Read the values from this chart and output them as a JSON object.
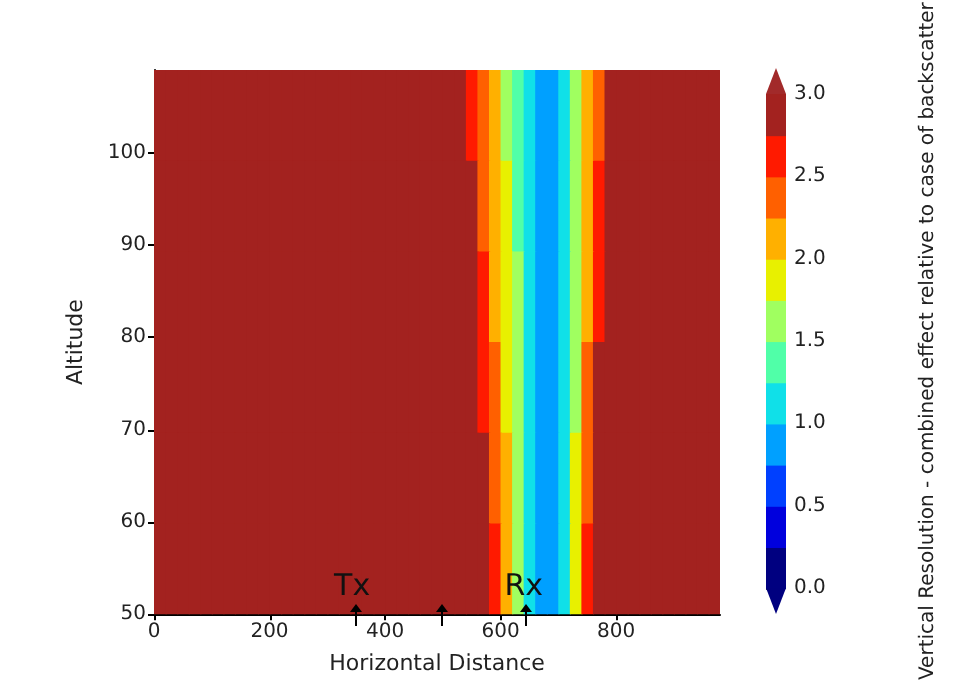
{
  "chart_data": {
    "type": "heatmap",
    "xlabel": "Horizontal Distance",
    "ylabel": "Altitude",
    "clabel": "Vertical Resolution - combined effect relative to case of backscatter",
    "xlim": [
      0,
      980
    ],
    "ylim": [
      50,
      109
    ],
    "xticks": [
      0,
      200,
      400,
      600,
      800
    ],
    "yticks": [
      50,
      60,
      70,
      80,
      90,
      100
    ],
    "clim": [
      0,
      3
    ],
    "cticks": [
      {
        "value": 0,
        "label": "0.0"
      },
      {
        "value": 0.5,
        "label": "0.5"
      },
      {
        "value": 1,
        "label": "1.0"
      },
      {
        "value": 1.5,
        "label": "1.5"
      },
      {
        "value": 2,
        "label": "2.0"
      },
      {
        "value": 2.5,
        "label": "2.5"
      },
      {
        "value": 3,
        "label": "3.0"
      }
    ],
    "annotations": [
      "Tx",
      "Rx"
    ],
    "cells": [
      [
        3,
        3,
        3,
        3,
        3,
        3,
        3,
        3,
        3,
        3,
        3,
        3,
        3,
        3,
        3,
        3,
        3,
        3,
        3,
        3,
        3,
        3,
        3,
        3,
        3,
        3,
        2.9,
        2.6,
        2.3,
        2.0,
        1.7,
        1.4,
        1.1,
        0.9,
        0.9,
        1.1,
        1.5,
        2.0,
        2.4,
        2.8,
        3,
        3,
        3,
        3,
        3,
        3,
        3,
        3,
        3
      ],
      [
        3,
        3,
        3,
        3,
        3,
        3,
        3,
        3,
        3,
        3,
        3,
        3,
        3,
        3,
        3,
        3,
        3,
        3,
        3,
        3,
        3,
        3,
        3,
        3,
        3,
        3,
        3,
        2.8,
        2.4,
        2.1,
        1.8,
        1.4,
        1.1,
        0.9,
        0.9,
        1.1,
        1.6,
        2.0,
        2.5,
        3,
        3,
        3,
        3,
        3,
        3,
        3,
        3,
        3,
        3
      ],
      [
        3,
        3,
        3,
        3,
        3,
        3,
        3,
        3,
        3,
        3,
        3,
        3,
        3,
        3,
        3,
        3,
        3,
        3,
        3,
        3,
        3,
        3,
        3,
        3,
        3,
        3,
        3,
        2.9,
        2.5,
        2.2,
        1.8,
        1.5,
        1.1,
        0.9,
        0.9,
        1.1,
        1.6,
        2.1,
        2.6,
        3,
        3,
        3,
        3,
        3,
        3,
        3,
        3,
        3,
        3
      ],
      [
        3,
        3,
        3,
        3,
        3,
        3,
        3,
        3,
        3,
        3,
        3,
        3,
        3,
        3,
        3,
        3,
        3,
        3,
        3,
        3,
        3,
        3,
        3,
        3,
        3,
        3,
        3,
        3,
        2.7,
        2.3,
        1.9,
        1.5,
        1.1,
        0.9,
        0.9,
        1.1,
        1.7,
        2.3,
        2.8,
        3,
        3,
        3,
        3,
        3,
        3,
        3,
        3,
        3,
        3
      ],
      [
        3,
        3,
        3,
        3,
        3,
        3,
        3,
        3,
        3,
        3,
        3,
        3,
        3,
        3,
        3,
        3,
        3,
        3,
        3,
        3,
        3,
        3,
        3,
        3,
        3,
        3,
        3,
        3,
        2.9,
        2.4,
        2.0,
        1.5,
        1.1,
        0.9,
        0.9,
        1.2,
        1.8,
        2.4,
        3,
        3,
        3,
        3,
        3,
        3,
        3,
        3,
        3,
        3,
        3
      ],
      [
        3,
        3,
        3,
        3,
        3,
        3,
        3,
        3,
        3,
        3,
        3,
        3,
        3,
        3,
        3,
        3,
        3,
        3,
        3,
        3,
        3,
        3,
        3,
        3,
        3,
        3,
        3,
        3,
        3,
        2.6,
        2.1,
        1.6,
        1.1,
        0.9,
        0.9,
        1.2,
        1.9,
        2.6,
        3,
        3,
        3,
        3,
        3,
        3,
        3,
        3,
        3,
        3,
        3
      ]
    ]
  }
}
